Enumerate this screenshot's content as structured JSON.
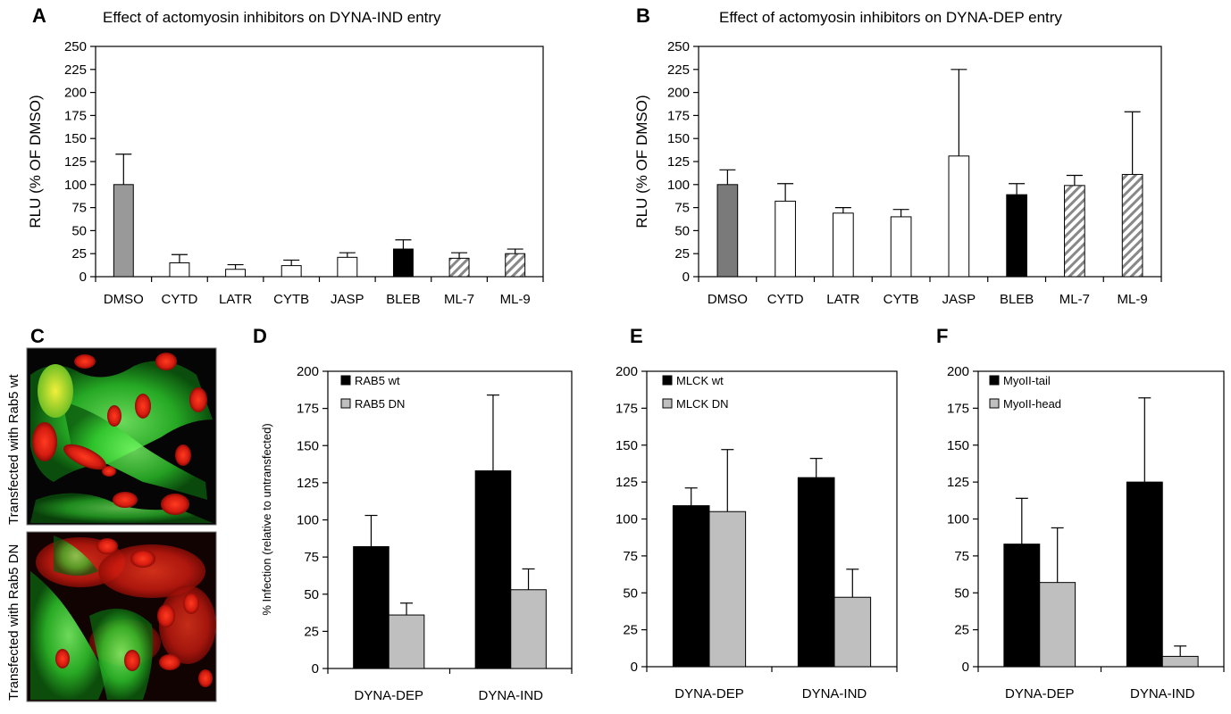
{
  "micrograph_labels": [
    "Transfected with Rab5 wt",
    "Transfected with Rab5 DN"
  ],
  "micrograph_panel": "C",
  "chart_data": [
    {
      "panel": "A",
      "type": "bar",
      "title": "Effect of actomyosin inhibitors on DYNA-IND entry",
      "ylabel": "RLU (% OF DMSO)",
      "xlabel": "",
      "ylim": [
        0,
        250
      ],
      "yticks": [
        0,
        25,
        50,
        75,
        100,
        125,
        150,
        175,
        200,
        225,
        250
      ],
      "categories": [
        "DMSO",
        "CYTD",
        "LATR",
        "CYTB",
        "JASP",
        "BLEB",
        "ML-7",
        "ML-9"
      ],
      "values": [
        100,
        15,
        8,
        12,
        21,
        30,
        20,
        25
      ],
      "errors": [
        33,
        9,
        5,
        6,
        5,
        10,
        6,
        5
      ],
      "fills": [
        "gray",
        "white",
        "white",
        "white",
        "white",
        "black",
        "hatch",
        "hatch"
      ],
      "colors": {
        "gray": "#999999",
        "black": "#000000",
        "white": "#ffffff"
      },
      "grid": false
    },
    {
      "panel": "B",
      "type": "bar",
      "title": "Effect of actomyosin inhibitors on DYNA-DEP entry",
      "ylabel": "RLU (% OF DMSO)",
      "xlabel": "",
      "ylim": [
        0,
        250
      ],
      "yticks": [
        0,
        25,
        50,
        75,
        100,
        125,
        150,
        175,
        200,
        225,
        250
      ],
      "categories": [
        "DMSO",
        "CYTD",
        "LATR",
        "CYTB",
        "JASP",
        "BLEB",
        "ML-7",
        "ML-9"
      ],
      "values": [
        100,
        82,
        69,
        65,
        131,
        89,
        99,
        111
      ],
      "errors": [
        16,
        19,
        6,
        8,
        94,
        12,
        11,
        68
      ],
      "fills": [
        "gray",
        "white",
        "white",
        "white",
        "white",
        "black",
        "hatch",
        "hatch"
      ],
      "colors": {
        "gray": "#7a7a7a",
        "black": "#000000",
        "white": "#ffffff"
      },
      "grid": false
    },
    {
      "panel": "D",
      "type": "bar",
      "title": "",
      "ylabel": "% Infection (relative to untransfected)",
      "xlabel": "",
      "ylim": [
        0,
        200
      ],
      "yticks": [
        0,
        25,
        50,
        75,
        100,
        125,
        150,
        175,
        200
      ],
      "categories": [
        "DYNA-DEP",
        "DYNA-IND"
      ],
      "series": [
        {
          "name": "RAB5 wt",
          "color": "#000000",
          "values": [
            82,
            133
          ],
          "errors": [
            21,
            51
          ]
        },
        {
          "name": "RAB5 DN",
          "color": "#bfbfbf",
          "values": [
            36,
            53
          ],
          "errors": [
            8,
            14
          ]
        }
      ],
      "legend": "top-left",
      "grid": false
    },
    {
      "panel": "E",
      "type": "bar",
      "title": "",
      "ylabel": "",
      "xlabel": "",
      "ylim": [
        0,
        200
      ],
      "yticks": [
        0,
        25,
        50,
        75,
        100,
        125,
        150,
        175,
        200
      ],
      "categories": [
        "DYNA-DEP",
        "DYNA-IND"
      ],
      "series": [
        {
          "name": "MLCK wt",
          "color": "#000000",
          "values": [
            109,
            128
          ],
          "errors": [
            12,
            13
          ]
        },
        {
          "name": "MLCK DN",
          "color": "#bfbfbf",
          "values": [
            105,
            47
          ],
          "errors": [
            42,
            19
          ]
        }
      ],
      "legend": "top-left",
      "grid": false
    },
    {
      "panel": "F",
      "type": "bar",
      "title": "",
      "ylabel": "",
      "xlabel": "",
      "ylim": [
        0,
        200
      ],
      "yticks": [
        0,
        25,
        50,
        75,
        100,
        125,
        150,
        175,
        200
      ],
      "categories": [
        "DYNA-DEP",
        "DYNA-IND"
      ],
      "series": [
        {
          "name": "MyoII-tail",
          "color": "#000000",
          "values": [
            83,
            125
          ],
          "errors": [
            31,
            57
          ]
        },
        {
          "name": "MyoII-head",
          "color": "#bfbfbf",
          "values": [
            57,
            7
          ],
          "errors": [
            37,
            7
          ]
        }
      ],
      "legend": "top-left",
      "grid": false
    }
  ]
}
